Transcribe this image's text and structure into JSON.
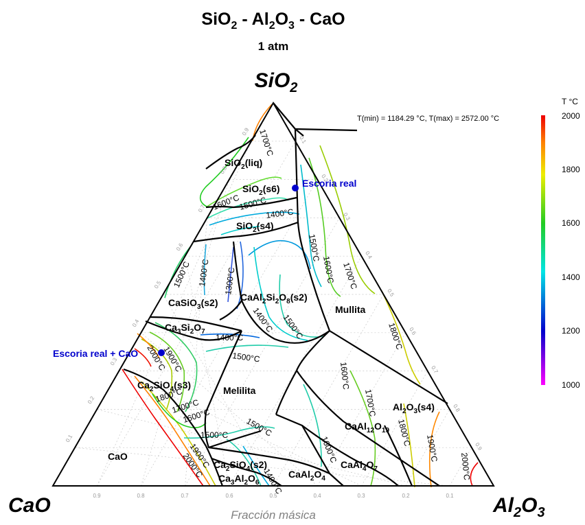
{
  "title": {
    "pre": "SiO",
    "s1": "2",
    "mid1": " - Al",
    "s2": "2",
    "mid2": "O",
    "s3": "3",
    "post": " - CaO"
  },
  "subtitle": "1 atm",
  "vertices": {
    "top": {
      "main": "SiO",
      "sub": "2"
    },
    "left": "CaO",
    "right": {
      "main": "Al",
      "sub1": "2",
      "mid": "O",
      "sub2": "3"
    }
  },
  "axis_label": "Fracción másica",
  "ticks": {
    "bottom": [
      "0.9",
      "0.8",
      "0.7",
      "0.6",
      "0.5",
      "0.4",
      "0.3",
      "0.2",
      "0.1"
    ],
    "left": [
      "0.9",
      "0.8",
      "0.7",
      "0.6",
      "0.5",
      "0.4",
      "0.3",
      "0.2",
      "0.1"
    ],
    "right": [
      "0.1",
      "0.2",
      "0.3",
      "0.4",
      "0.5",
      "0.6",
      "0.7",
      "0.8",
      "0.9"
    ]
  },
  "info": "T(min) = 1184.29 °C, T(max) = 2572.00 °C",
  "colorbar": {
    "unit": "T °C",
    "labels": [
      "2000",
      "1800",
      "1600",
      "1400",
      "1200",
      "1000"
    ],
    "colors": [
      "#ff00ff",
      "#0000cc",
      "#00e5e5",
      "#22cc22",
      "#eeee00",
      "#ff8000",
      "#ee0000"
    ]
  },
  "phases": {
    "sio2_liq": {
      "a": "SiO",
      "b": "2",
      "c": "(liq)"
    },
    "sio2_s6": {
      "a": "SiO",
      "b": "2",
      "c": "(s6)"
    },
    "sio2_s4": {
      "a": "SiO",
      "b": "2",
      "c": "(s4)"
    },
    "casio3": {
      "a": "CaSiO",
      "b": "3",
      "c": "(s2)"
    },
    "caal2si2o8": {
      "a": "CaAl",
      "b": "2",
      "c": "Si",
      "d": "2",
      "e": "O",
      "f": "8",
      "g": "(s2)"
    },
    "ca3si2o7": {
      "a": "Ca",
      "b": "3",
      "c": "Si",
      "d": "2",
      "e": "O",
      "f": "7"
    },
    "ca2sio4_s3": {
      "a": "Ca",
      "b": "2",
      "c": "SiO",
      "d": "4",
      "e": "(s3)"
    },
    "ca2sio4_s2": {
      "a": "Ca",
      "b": "2",
      "c": "SiO",
      "d": "4",
      "e": "(s2)"
    },
    "ca3al2o6": {
      "a": "Ca",
      "b": "3",
      "c": "Al",
      "d": "2",
      "e": "O",
      "f": "6"
    },
    "caal2o4": {
      "a": "CaAl",
      "b": "2",
      "c": "O",
      "d": "4"
    },
    "caal4o7": {
      "a": "CaAl",
      "b": "4",
      "c": "O",
      "d": "7"
    },
    "caal12o19": {
      "a": "CaAl",
      "b": "12",
      "c": "O",
      "d": "19"
    },
    "al2o3_s4": {
      "a": "Al",
      "b": "2",
      "c": "O",
      "d": "3",
      "e": "(s4)"
    },
    "mullita": "Mullita",
    "melilita": "Melilita",
    "cao": "CaO"
  },
  "isotherms": {
    "t1300": "1300°C",
    "t1400": "1400°C",
    "t1500": "1500°C",
    "t1600": "1600°C",
    "t1700": "1700°C",
    "t1800": "1800°C",
    "t1900": "1900°C",
    "t2000": "2000°C"
  },
  "points": [
    {
      "label": "Escoria real",
      "color": "#0000cc"
    },
    {
      "label": "Escoria real + CaO",
      "color": "#0000cc"
    }
  ]
}
